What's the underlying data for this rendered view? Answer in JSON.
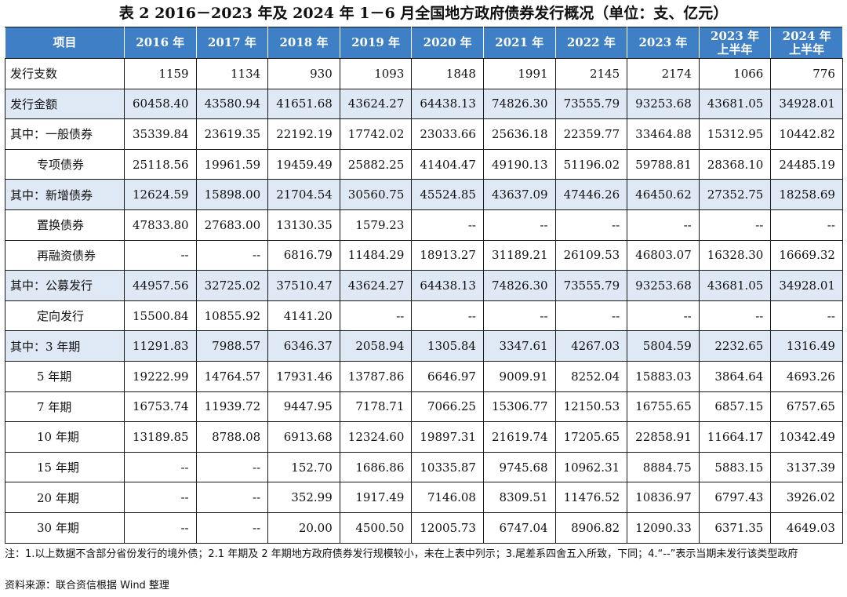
{
  "title": "表 2  2016－2023 年及 2024 年 1－6 月全国地方政府债券发行概况（单位：支、亿元）",
  "table": {
    "header": [
      "项目",
      "2016 年",
      "2017 年",
      "2018 年",
      "2019 年",
      "2020 年",
      "2021 年",
      "2022 年",
      "2023 年",
      [
        "2023 年",
        "上半年"
      ],
      [
        "2024 年",
        "上半年"
      ]
    ],
    "rows": [
      {
        "label": "发行支数",
        "indent": false,
        "highlight": false,
        "values": [
          "1159",
          "1134",
          "930",
          "1093",
          "1848",
          "1991",
          "2145",
          "2174",
          "1066",
          "776"
        ]
      },
      {
        "label": "发行金额",
        "indent": false,
        "highlight": true,
        "values": [
          "60458.40",
          "43580.94",
          "41651.68",
          "43624.27",
          "64438.13",
          "74826.30",
          "73555.79",
          "93253.68",
          "43681.05",
          "34928.01"
        ]
      },
      {
        "label": "其中：一般债券",
        "indent": false,
        "highlight": false,
        "values": [
          "35339.84",
          "23619.35",
          "22192.19",
          "17742.02",
          "23033.66",
          "25636.18",
          "22359.77",
          "33464.88",
          "15312.95",
          "10442.82"
        ]
      },
      {
        "label": "专项债券",
        "indent": true,
        "highlight": false,
        "values": [
          "25118.56",
          "19961.59",
          "19459.49",
          "25882.25",
          "41404.47",
          "49190.13",
          "51196.02",
          "59788.81",
          "28368.10",
          "24485.19"
        ]
      },
      {
        "label": "其中：新增债券",
        "indent": false,
        "highlight": true,
        "values": [
          "12624.59",
          "15898.00",
          "21704.54",
          "30560.75",
          "45524.85",
          "43637.09",
          "47446.26",
          "46450.62",
          "27352.75",
          "18258.69"
        ]
      },
      {
        "label": "置换债券",
        "indent": true,
        "highlight": false,
        "values": [
          "47833.80",
          "27683.00",
          "13130.35",
          "1579.23",
          "--",
          "--",
          "--",
          "--",
          "--",
          "--"
        ]
      },
      {
        "label": "再融资债券",
        "indent": true,
        "highlight": false,
        "values": [
          "--",
          "--",
          "6816.79",
          "11484.29",
          "18913.27",
          "31189.21",
          "26109.53",
          "46803.07",
          "16328.30",
          "16669.32"
        ]
      },
      {
        "label": "其中：公募发行",
        "indent": false,
        "highlight": true,
        "values": [
          "44957.56",
          "32725.02",
          "37510.47",
          "43624.27",
          "64438.13",
          "74826.30",
          "73555.79",
          "93253.68",
          "43681.05",
          "34928.01"
        ]
      },
      {
        "label": "定向发行",
        "indent": true,
        "highlight": false,
        "values": [
          "15500.84",
          "10855.92",
          "4141.20",
          "--",
          "--",
          "--",
          "--",
          "--",
          "--",
          "--"
        ]
      },
      {
        "label": "其中：3 年期",
        "indent": false,
        "highlight": true,
        "values": [
          "11291.83",
          "7988.57",
          "6346.37",
          "2058.94",
          "1305.84",
          "3347.61",
          "4267.03",
          "5804.59",
          "2232.65",
          "1316.49"
        ]
      },
      {
        "label": "5 年期",
        "indent": true,
        "highlight": false,
        "values": [
          "19222.99",
          "14764.57",
          "17931.46",
          "13787.86",
          "6646.97",
          "9009.91",
          "8252.04",
          "15883.03",
          "3864.64",
          "4693.26"
        ]
      },
      {
        "label": "7 年期",
        "indent": true,
        "highlight": false,
        "values": [
          "16753.74",
          "11939.72",
          "9447.95",
          "7178.71",
          "7066.25",
          "15306.77",
          "12150.53",
          "16755.65",
          "6857.15",
          "6757.65"
        ]
      },
      {
        "label": "10 年期",
        "indent": true,
        "highlight": false,
        "values": [
          "13189.85",
          "8788.08",
          "6913.68",
          "12324.60",
          "19897.31",
          "21619.74",
          "17205.65",
          "22858.91",
          "11664.17",
          "10342.49"
        ]
      },
      {
        "label": "15 年期",
        "indent": true,
        "highlight": false,
        "values": [
          "--",
          "--",
          "152.70",
          "1686.86",
          "10335.87",
          "9745.68",
          "10962.31",
          "8884.75",
          "5883.15",
          "3137.39"
        ]
      },
      {
        "label": "20 年期",
        "indent": true,
        "highlight": false,
        "values": [
          "--",
          "--",
          "352.99",
          "1917.49",
          "7146.08",
          "8309.51",
          "11476.52",
          "10836.97",
          "6797.43",
          "3926.02"
        ]
      },
      {
        "label": "30 年期",
        "indent": true,
        "highlight": false,
        "values": [
          "--",
          "--",
          "20.00",
          "4500.50",
          "12005.73",
          "6747.04",
          "8906.82",
          "12090.33",
          "6371.35",
          "4649.03"
        ]
      }
    ]
  },
  "note": "注：1.以上数据不含部分省份发行的境外债；2.1 年期及 2 年期地方政府债券发行规模较小，未在上表中列示；3.尾差系四舍五入所致，下同；4.“--”表示当期未发行该类型政府",
  "source": "资料来源：联合资信根据 Wind 整理"
}
